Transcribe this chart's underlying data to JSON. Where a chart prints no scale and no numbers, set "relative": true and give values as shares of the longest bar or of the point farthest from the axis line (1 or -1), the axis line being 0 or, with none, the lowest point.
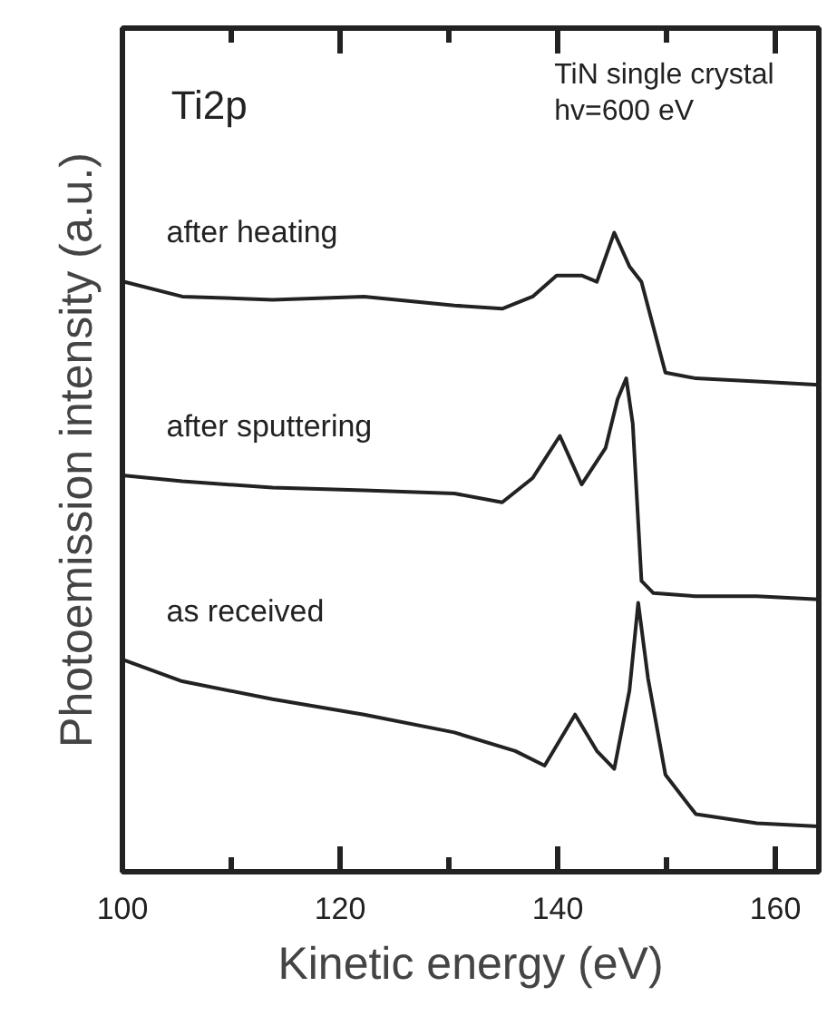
{
  "chart_data": {
    "type": "line",
    "relative": true,
    "xlabel": "Kinetic energy (eV)",
    "ylabel": "Photoemission intensity (a.u.)",
    "annotations": [
      "Ti2p",
      "TiN single crystal\nhv=600 eV"
    ],
    "xlim": [
      100,
      164
    ],
    "xticks": [
      100,
      {
        "value": 110,
        "label": null
      },
      120,
      {
        "value": 130,
        "label": null
      },
      140,
      {
        "value": 150,
        "label": null
      },
      160
    ],
    "grid": false,
    "marker": "none",
    "line_style": "solid",
    "series": [
      {
        "name": "after heating",
        "color": "#222222",
        "x": [
          100.2,
          105.5,
          113.8,
          122.2,
          130.5,
          134.9,
          137.7,
          139.9,
          142.2,
          143.6,
          145.2,
          146.6,
          147.7,
          148.8,
          149.9,
          152.7,
          158.3,
          164.0
        ],
        "values": [
          0.923,
          0.9,
          0.895,
          0.9,
          0.886,
          0.881,
          0.9,
          0.933,
          0.933,
          0.923,
          1.0,
          0.947,
          0.923,
          0.852,
          0.781,
          0.772,
          0.767,
          0.762
        ]
      },
      {
        "name": "after sputtering",
        "color": "#222222",
        "x": [
          100.2,
          105.5,
          113.8,
          122.2,
          130.5,
          134.9,
          137.7,
          140.2,
          142.2,
          144.4,
          145.5,
          146.3,
          146.9,
          147.7,
          148.8,
          152.7,
          158.3,
          164.0
        ],
        "values": [
          0.62,
          0.611,
          0.601,
          0.597,
          0.592,
          0.578,
          0.616,
          0.682,
          0.606,
          0.663,
          0.739,
          0.772,
          0.701,
          0.455,
          0.436,
          0.431,
          0.431,
          0.426
        ]
      },
      {
        "name": "as received",
        "color": "#222222",
        "x": [
          100.2,
          105.5,
          113.8,
          122.2,
          130.5,
          136.1,
          138.8,
          141.6,
          143.6,
          145.2,
          146.6,
          147.4,
          148.3,
          149.9,
          152.7,
          158.3,
          164.0
        ],
        "values": [
          0.331,
          0.298,
          0.27,
          0.246,
          0.218,
          0.189,
          0.166,
          0.246,
          0.189,
          0.161,
          0.284,
          0.421,
          0.303,
          0.152,
          0.09,
          0.076,
          0.071
        ]
      }
    ]
  }
}
